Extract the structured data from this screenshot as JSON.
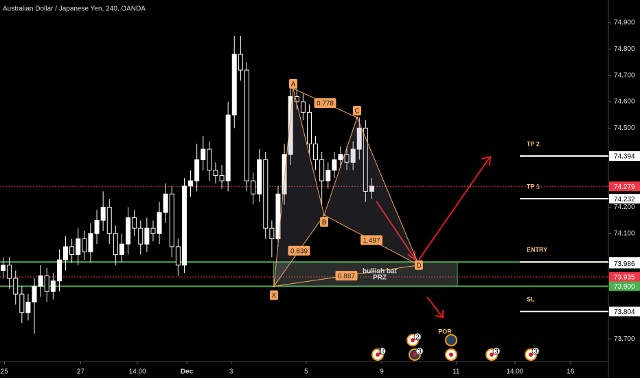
{
  "chart_data": {
    "type": "candlestick",
    "title": "Australian Dollar / Japanese Yen, 240, OANDA",
    "up_color": "#ffffff",
    "down_color": "#000000",
    "wick_color": "#ffffff",
    "xlim": [
      -0.5,
      96.86
    ],
    "ylim": [
      73.617,
      74.986
    ],
    "xticks": [
      {
        "value": 0.2,
        "label": "25"
      },
      {
        "value": 12.4,
        "label": "27"
      },
      {
        "value": 21.5,
        "label": "14:00"
      },
      {
        "value": 29.4,
        "label": "Dec"
      },
      {
        "value": 36.5,
        "label": "3"
      },
      {
        "value": 48.5,
        "label": "5"
      },
      {
        "value": 60.6,
        "label": "9"
      },
      {
        "value": 72.5,
        "label": "11"
      },
      {
        "value": 81.9,
        "label": "14:00"
      },
      {
        "value": 90.8,
        "label": "16"
      }
    ],
    "yticks": [
      {
        "value": 74.9,
        "label": "74.900"
      },
      {
        "value": 74.8,
        "label": "74.800"
      },
      {
        "value": 74.7,
        "label": "74.700"
      },
      {
        "value": 74.6,
        "label": "74.600"
      },
      {
        "value": 74.5,
        "label": "74.500"
      },
      {
        "value": 74.2,
        "label": "74.200"
      },
      {
        "value": 74.1,
        "label": "74.100"
      },
      {
        "value": 73.7,
        "label": "73.700"
      }
    ],
    "x": [
      0,
      1,
      2,
      3,
      4,
      5,
      6,
      7,
      8,
      9,
      10,
      11,
      12,
      13,
      14,
      15,
      16,
      17,
      18,
      19,
      20,
      21,
      22,
      23,
      24,
      25,
      26,
      27,
      28,
      29,
      30,
      31,
      32,
      33,
      34,
      35,
      36,
      37,
      38,
      39,
      40,
      41,
      42,
      43,
      44,
      45,
      46,
      47,
      48,
      49,
      50,
      51,
      52,
      53,
      54,
      55,
      56,
      57,
      58,
      59
    ],
    "open": [
      73.96,
      73.98,
      73.93,
      73.87,
      73.8,
      73.84,
      73.9,
      73.94,
      73.88,
      73.92,
      74.0,
      74.05,
      74.02,
      74.08,
      74.03,
      74.1,
      74.15,
      74.2,
      74.1,
      74.02,
      74.06,
      74.16,
      74.12,
      74.06,
      74.12,
      74.1,
      74.18,
      74.25,
      74.05,
      73.98,
      74.28,
      74.3,
      74.38,
      74.42,
      74.34,
      74.32,
      74.3,
      74.55,
      74.78,
      74.72,
      74.3,
      74.25,
      74.38,
      74.12,
      74.08,
      74.25,
      74.4,
      74.62,
      74.6,
      74.56,
      74.44,
      74.38,
      74.3,
      74.34,
      74.38,
      74.4,
      74.37,
      74.42,
      74.5,
      74.26
    ],
    "high": [
      74.01,
      74.01,
      73.96,
      73.9,
      73.87,
      73.93,
      73.98,
      73.97,
      73.95,
      74.04,
      74.09,
      74.08,
      74.12,
      74.11,
      74.14,
      74.19,
      74.26,
      74.23,
      74.13,
      74.1,
      74.2,
      74.19,
      74.15,
      74.16,
      74.15,
      74.22,
      74.29,
      74.28,
      74.08,
      74.31,
      74.34,
      74.44,
      74.47,
      74.45,
      74.37,
      74.36,
      74.6,
      74.85,
      74.85,
      74.75,
      74.33,
      74.42,
      74.41,
      74.15,
      74.28,
      74.44,
      74.66,
      74.65,
      74.63,
      74.59,
      74.47,
      74.41,
      74.37,
      74.41,
      74.43,
      74.43,
      74.45,
      74.54,
      74.53,
      74.31
    ],
    "low": [
      73.93,
      73.89,
      73.83,
      73.76,
      73.77,
      73.72,
      73.86,
      73.84,
      73.85,
      73.88,
      73.96,
      73.99,
      73.98,
      74.0,
      73.99,
      74.06,
      74.11,
      74.06,
      73.98,
      73.99,
      74.02,
      74.09,
      74.02,
      74.03,
      74.07,
      74.06,
      74.14,
      74.01,
      73.94,
      73.95,
      74.24,
      74.26,
      74.34,
      74.3,
      74.29,
      74.27,
      74.26,
      74.5,
      74.68,
      74.26,
      74.21,
      74.22,
      74.08,
      74.01,
      74.05,
      74.21,
      74.36,
      74.57,
      74.53,
      74.4,
      74.34,
      74.21,
      74.27,
      74.31,
      74.35,
      74.34,
      74.34,
      74.38,
      74.22,
      74.23
    ],
    "close": [
      73.98,
      73.93,
      73.87,
      73.8,
      73.84,
      73.9,
      73.94,
      73.88,
      73.92,
      74.0,
      74.05,
      74.02,
      74.08,
      74.03,
      74.1,
      74.15,
      74.2,
      74.1,
      74.02,
      74.06,
      74.16,
      74.12,
      74.06,
      74.12,
      74.1,
      74.18,
      74.25,
      74.05,
      73.98,
      74.28,
      74.3,
      74.38,
      74.42,
      74.34,
      74.32,
      74.3,
      74.55,
      74.78,
      74.72,
      74.3,
      74.25,
      74.38,
      74.12,
      74.08,
      74.25,
      74.4,
      74.62,
      74.6,
      74.56,
      74.44,
      74.38,
      74.3,
      74.34,
      74.38,
      74.4,
      74.37,
      74.42,
      74.5,
      74.26,
      74.28
    ],
    "pattern": {
      "color": "#f7a35c",
      "points": [
        {
          "name": "X",
          "x": 43.34,
          "y": 73.9
        },
        {
          "name": "A",
          "x": 46.42,
          "y": 74.65
        },
        {
          "name": "B",
          "x": 51.37,
          "y": 74.17
        },
        {
          "name": "C",
          "x": 56.64,
          "y": 74.54
        },
        {
          "name": "D",
          "x": 66.53,
          "y": 73.98
        }
      ],
      "ratios": [
        0.778,
        0.639,
        1.497,
        0.887
      ],
      "prz": {
        "label": [
          "bullish bat",
          "PRZ"
        ],
        "xlim": [
          43.3,
          72.7
        ],
        "ylim": [
          73.9,
          73.992
        ]
      }
    },
    "levels": [
      {
        "name": "TP 2",
        "value": 74.394
      },
      {
        "name": "TP 1",
        "value": 74.232
      },
      {
        "name": "ENTRY",
        "value": 73.992,
        "line_color": "#4caf50"
      },
      {
        "name": "SL",
        "value": 73.804
      }
    ],
    "price_marks": [
      {
        "value": 74.279,
        "color": "#f23645",
        "line": "dotted"
      },
      {
        "value": 73.986,
        "color": "#ffffff",
        "line": "none"
      },
      {
        "value": 73.935,
        "color": "#f23645",
        "line": "dotted"
      },
      {
        "value": 73.9,
        "label": "73.900",
        "color": "#4caf50",
        "line": "solid"
      }
    ],
    "events": {
      "title": "POR",
      "counts": [
        10,
        2,
        3,
        3,
        3
      ]
    }
  }
}
